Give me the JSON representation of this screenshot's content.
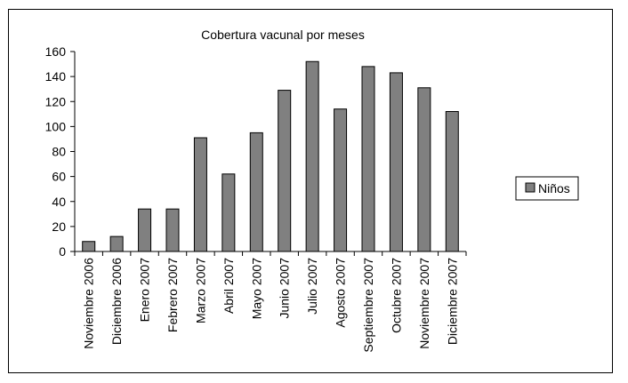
{
  "chart_data": {
    "type": "bar",
    "title": "Cobertura vacunal por meses",
    "categories": [
      "Noviembre 2006",
      "Diciembre 2006",
      "Enero 2007",
      "Febrero 2007",
      "Marzo 2007",
      "Abril 2007",
      "Mayo 2007",
      "Junio 2007",
      "Julio 2007",
      "Agosto 2007",
      "Septiembre 2007",
      "Octubre 2007",
      "Noviembre 2007",
      "Diciembre 2007"
    ],
    "series": [
      {
        "name": "Niños",
        "values": [
          8,
          12,
          34,
          34,
          91,
          62,
          95,
          129,
          152,
          114,
          148,
          143,
          131,
          112
        ],
        "color": "#808080"
      }
    ],
    "ylim": [
      0,
      160
    ],
    "yticks": [
      0,
      20,
      40,
      60,
      80,
      100,
      120,
      140,
      160
    ],
    "grid": false,
    "legend_position": "right",
    "xlabel": "",
    "ylabel": ""
  }
}
